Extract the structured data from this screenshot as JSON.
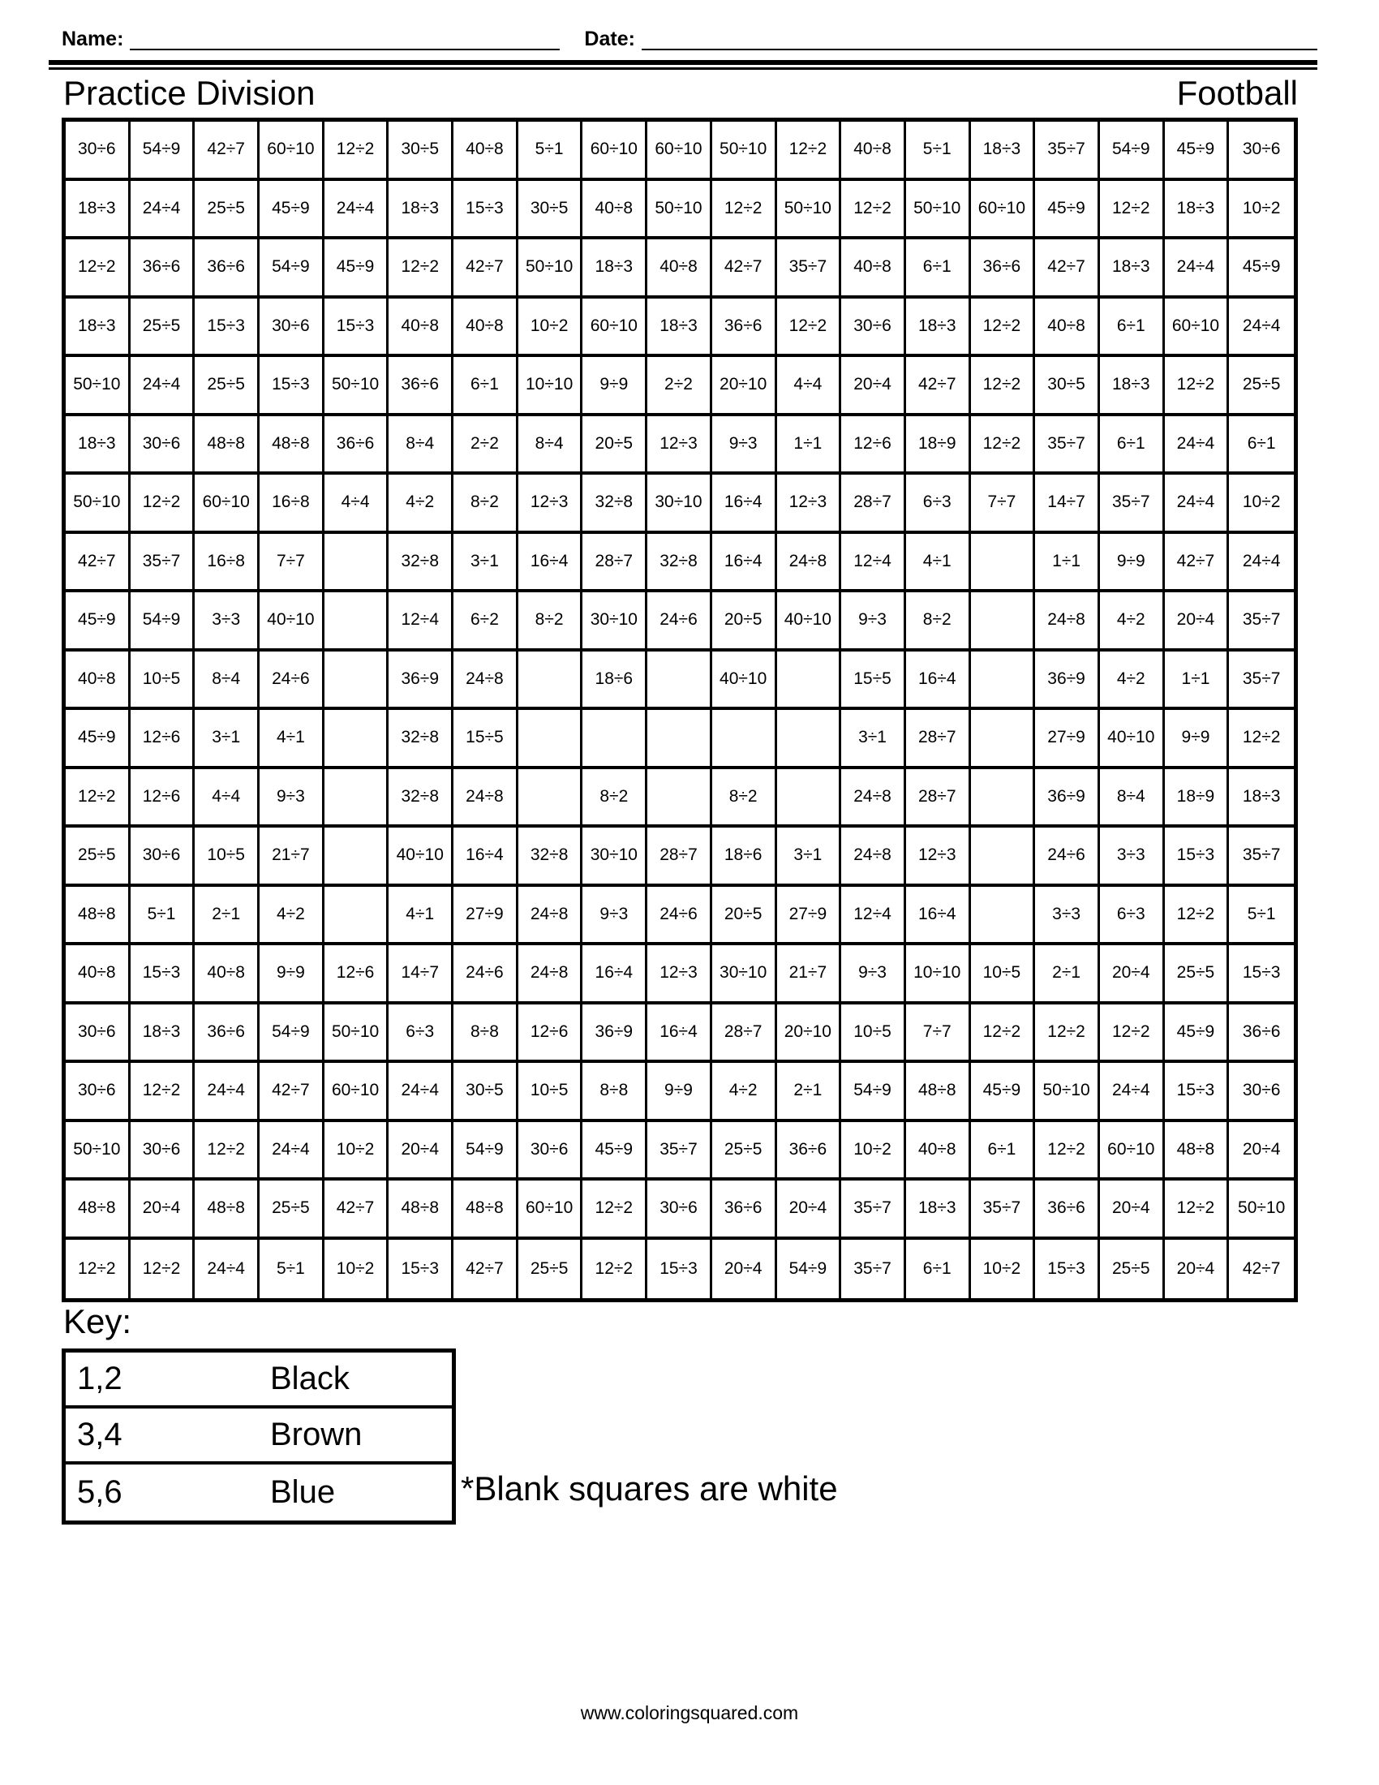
{
  "header": {
    "name_label": "Name:",
    "date_label": "Date:",
    "title": "Practice Division",
    "theme": "Football"
  },
  "grid": {
    "columns": 19,
    "row_count": 20,
    "cells": [
      [
        "30÷6",
        "54÷9",
        "42÷7",
        "60÷10",
        "12÷2",
        "30÷5",
        "40÷8",
        "5÷1",
        "60÷10",
        "60÷10",
        "50÷10",
        "12÷2",
        "40÷8",
        "5÷1",
        "18÷3",
        "35÷7",
        "54÷9",
        "45÷9",
        "30÷6"
      ],
      [
        "18÷3",
        "24÷4",
        "25÷5",
        "45÷9",
        "24÷4",
        "18÷3",
        "15÷3",
        "30÷5",
        "40÷8",
        "50÷10",
        "12÷2",
        "50÷10",
        "12÷2",
        "50÷10",
        "60÷10",
        "45÷9",
        "12÷2",
        "18÷3",
        "10÷2"
      ],
      [
        "12÷2",
        "36÷6",
        "36÷6",
        "54÷9",
        "45÷9",
        "12÷2",
        "42÷7",
        "50÷10",
        "18÷3",
        "40÷8",
        "42÷7",
        "35÷7",
        "40÷8",
        "6÷1",
        "36÷6",
        "42÷7",
        "18÷3",
        "24÷4",
        "45÷9"
      ],
      [
        "18÷3",
        "25÷5",
        "15÷3",
        "30÷6",
        "15÷3",
        "40÷8",
        "40÷8",
        "10÷2",
        "60÷10",
        "18÷3",
        "36÷6",
        "12÷2",
        "30÷6",
        "18÷3",
        "12÷2",
        "40÷8",
        "6÷1",
        "60÷10",
        "24÷4"
      ],
      [
        "50÷10",
        "24÷4",
        "25÷5",
        "15÷3",
        "50÷10",
        "36÷6",
        "6÷1",
        "10÷10",
        "9÷9",
        "2÷2",
        "20÷10",
        "4÷4",
        "20÷4",
        "42÷7",
        "12÷2",
        "30÷5",
        "18÷3",
        "12÷2",
        "25÷5"
      ],
      [
        "18÷3",
        "30÷6",
        "48÷8",
        "48÷8",
        "36÷6",
        "8÷4",
        "2÷2",
        "8÷4",
        "20÷5",
        "12÷3",
        "9÷3",
        "1÷1",
        "12÷6",
        "18÷9",
        "12÷2",
        "35÷7",
        "6÷1",
        "24÷4",
        "6÷1"
      ],
      [
        "50÷10",
        "12÷2",
        "60÷10",
        "16÷8",
        "4÷4",
        "4÷2",
        "8÷2",
        "12÷3",
        "32÷8",
        "30÷10",
        "16÷4",
        "12÷3",
        "28÷7",
        "6÷3",
        "7÷7",
        "14÷7",
        "35÷7",
        "24÷4",
        "10÷2"
      ],
      [
        "42÷7",
        "35÷7",
        "16÷8",
        "7÷7",
        "",
        "32÷8",
        "3÷1",
        "16÷4",
        "28÷7",
        "32÷8",
        "16÷4",
        "24÷8",
        "12÷4",
        "4÷1",
        "",
        "1÷1",
        "9÷9",
        "42÷7",
        "24÷4"
      ],
      [
        "45÷9",
        "54÷9",
        "3÷3",
        "40÷10",
        "",
        "12÷4",
        "6÷2",
        "8÷2",
        "30÷10",
        "24÷6",
        "20÷5",
        "40÷10",
        "9÷3",
        "8÷2",
        "",
        "24÷8",
        "4÷2",
        "20÷4",
        "35÷7"
      ],
      [
        "40÷8",
        "10÷5",
        "8÷4",
        "24÷6",
        "",
        "36÷9",
        "24÷8",
        "",
        "18÷6",
        "",
        "40÷10",
        "",
        "15÷5",
        "16÷4",
        "",
        "36÷9",
        "4÷2",
        "1÷1",
        "35÷7"
      ],
      [
        "45÷9",
        "12÷6",
        "3÷1",
        "4÷1",
        "",
        "32÷8",
        "15÷5",
        "",
        "",
        "",
        "",
        "",
        "3÷1",
        "28÷7",
        "",
        "27÷9",
        "40÷10",
        "9÷9",
        "12÷2"
      ],
      [
        "12÷2",
        "12÷6",
        "4÷4",
        "9÷3",
        "",
        "32÷8",
        "24÷8",
        "",
        "8÷2",
        "",
        "8÷2",
        "",
        "24÷8",
        "28÷7",
        "",
        "36÷9",
        "8÷4",
        "18÷9",
        "18÷3"
      ],
      [
        "25÷5",
        "30÷6",
        "10÷5",
        "21÷7",
        "",
        "40÷10",
        "16÷4",
        "32÷8",
        "30÷10",
        "28÷7",
        "18÷6",
        "3÷1",
        "24÷8",
        "12÷3",
        "",
        "24÷6",
        "3÷3",
        "15÷3",
        "35÷7"
      ],
      [
        "48÷8",
        "5÷1",
        "2÷1",
        "4÷2",
        "",
        "4÷1",
        "27÷9",
        "24÷8",
        "9÷3",
        "24÷6",
        "20÷5",
        "27÷9",
        "12÷4",
        "16÷4",
        "",
        "3÷3",
        "6÷3",
        "12÷2",
        "5÷1"
      ],
      [
        "40÷8",
        "15÷3",
        "40÷8",
        "9÷9",
        "12÷6",
        "14÷7",
        "24÷6",
        "24÷8",
        "16÷4",
        "12÷3",
        "30÷10",
        "21÷7",
        "9÷3",
        "10÷10",
        "10÷5",
        "2÷1",
        "20÷4",
        "25÷5",
        "15÷3"
      ],
      [
        "30÷6",
        "18÷3",
        "36÷6",
        "54÷9",
        "50÷10",
        "6÷3",
        "8÷8",
        "12÷6",
        "36÷9",
        "16÷4",
        "28÷7",
        "20÷10",
        "10÷5",
        "7÷7",
        "12÷2",
        "12÷2",
        "12÷2",
        "45÷9",
        "36÷6"
      ],
      [
        "30÷6",
        "12÷2",
        "24÷4",
        "42÷7",
        "60÷10",
        "24÷4",
        "30÷5",
        "10÷5",
        "8÷8",
        "9÷9",
        "4÷2",
        "2÷1",
        "54÷9",
        "48÷8",
        "45÷9",
        "50÷10",
        "24÷4",
        "15÷3",
        "30÷6"
      ],
      [
        "50÷10",
        "30÷6",
        "12÷2",
        "24÷4",
        "10÷2",
        "20÷4",
        "54÷9",
        "30÷6",
        "45÷9",
        "35÷7",
        "25÷5",
        "36÷6",
        "10÷2",
        "40÷8",
        "6÷1",
        "12÷2",
        "60÷10",
        "48÷8",
        "20÷4"
      ],
      [
        "48÷8",
        "20÷4",
        "48÷8",
        "25÷5",
        "42÷7",
        "48÷8",
        "48÷8",
        "60÷10",
        "12÷2",
        "30÷6",
        "36÷6",
        "20÷4",
        "35÷7",
        "18÷3",
        "35÷7",
        "36÷6",
        "20÷4",
        "12÷2",
        "50÷10"
      ],
      [
        "12÷2",
        "12÷2",
        "24÷4",
        "5÷1",
        "10÷2",
        "15÷3",
        "42÷7",
        "25÷5",
        "12÷2",
        "15÷3",
        "20÷4",
        "54÷9",
        "35÷7",
        "6÷1",
        "10÷2",
        "15÷3",
        "25÷5",
        "20÷4",
        "42÷7"
      ]
    ]
  },
  "key": {
    "heading": "Key:",
    "entries": [
      {
        "numbers": "1,2",
        "color": "Black"
      },
      {
        "numbers": "3,4",
        "color": "Brown"
      },
      {
        "numbers": "5,6",
        "color": "Blue"
      }
    ],
    "note": "*Blank squares are white"
  },
  "footer": {
    "website": "www.coloringsquared.com"
  }
}
